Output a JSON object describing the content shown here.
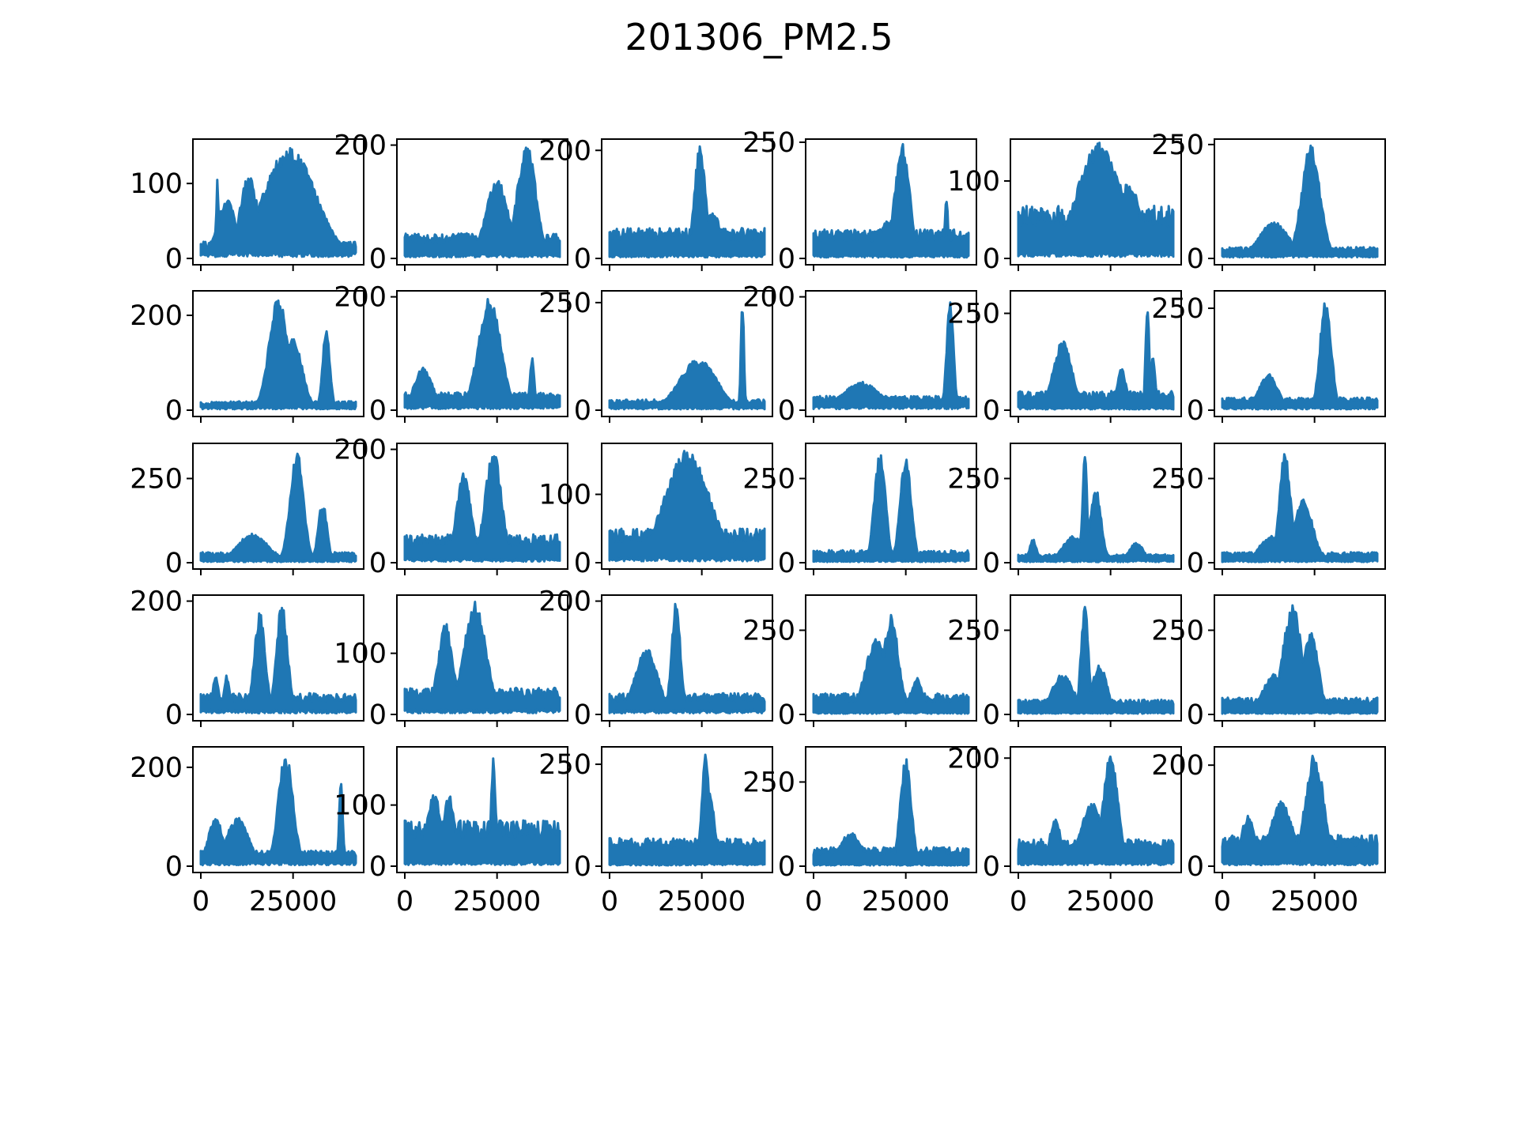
{
  "chart_data": {
    "title": "201306_PM2.5",
    "type": "area",
    "rows": 5,
    "cols": 6,
    "series_color": "#1f77b4",
    "x_range": [
      0,
      42000
    ],
    "x_ticks": [
      0,
      25000
    ],
    "x_tick_labels": [
      "0",
      "25000"
    ],
    "grid": false,
    "legend": "none",
    "panels": [
      {
        "ylim": [
          0,
          155
        ],
        "yticks": [
          0,
          100
        ],
        "ytick_labels": [
          "0",
          "100"
        ],
        "base": 18,
        "peaks": [
          [
            4500,
            110,
            300
          ],
          [
            7000,
            80,
            2500
          ],
          [
            13000,
            110,
            2500
          ],
          [
            24000,
            150,
            7000
          ]
        ]
      },
      {
        "ylim": [
          0,
          205
        ],
        "yticks": [
          0,
          200
        ],
        "ytick_labels": [
          "0",
          "200"
        ],
        "base": 35,
        "peaks": [
          [
            16000,
            45,
            6000
          ],
          [
            25000,
            140,
            3000
          ],
          [
            33000,
            205,
            2500
          ]
        ]
      },
      {
        "ylim": [
          0,
          215
        ],
        "yticks": [
          0,
          200
        ],
        "ytick_labels": [
          "0",
          "200"
        ],
        "base": 45,
        "peaks": [
          [
            16000,
            50,
            4000
          ],
          [
            24500,
            210,
            1500
          ],
          [
            28000,
            90,
            2000
          ]
        ]
      },
      {
        "ylim": [
          0,
          250
        ],
        "yticks": [
          0,
          250
        ],
        "ytick_labels": [
          "0",
          "250"
        ],
        "base": 50,
        "peaks": [
          [
            24000,
            250,
            2000
          ],
          [
            20000,
            80,
            3000
          ],
          [
            36000,
            140,
            400
          ]
        ]
      },
      {
        "ylim": [
          0,
          150
        ],
        "yticks": [
          0,
          100
        ],
        "ytick_labels": [
          "0",
          "100"
        ],
        "base": 55,
        "peaks": [
          [
            22000,
            150,
            6000
          ],
          [
            30000,
            100,
            3000
          ]
        ]
      },
      {
        "ylim": [
          0,
          255
        ],
        "yticks": [
          0,
          250
        ],
        "ytick_labels": [
          "0",
          "250"
        ],
        "base": 20,
        "peaks": [
          [
            14000,
            80,
            4000
          ],
          [
            24000,
            250,
            2500
          ]
        ]
      },
      {
        "ylim": [
          0,
          245
        ],
        "yticks": [
          0,
          200
        ],
        "ytick_labels": [
          "0",
          "200"
        ],
        "base": 15,
        "peaks": [
          [
            21000,
            240,
            2500
          ],
          [
            25000,
            150,
            2500
          ],
          [
            34000,
            170,
            1000
          ]
        ]
      },
      {
        "ylim": [
          0,
          205
        ],
        "yticks": [
          0,
          200
        ],
        "ytick_labels": [
          "0",
          "200"
        ],
        "base": 25,
        "peaks": [
          [
            5000,
            75,
            2500
          ],
          [
            23000,
            200,
            3000
          ],
          [
            34500,
            95,
            600
          ]
        ]
      },
      {
        "ylim": [
          0,
          270
        ],
        "yticks": [
          0,
          250
        ],
        "ytick_labels": [
          "0",
          "250"
        ],
        "base": 20,
        "peaks": [
          [
            24000,
            120,
            5000
          ],
          [
            36000,
            270,
            400
          ]
        ]
      },
      {
        "ylim": [
          0,
          205
        ],
        "yticks": [
          0,
          200
        ],
        "ytick_labels": [
          "0",
          "200"
        ],
        "base": 20,
        "peaks": [
          [
            13000,
            50,
            5000
          ],
          [
            37000,
            200,
            900
          ]
        ]
      },
      {
        "ylim": [
          0,
          300
        ],
        "yticks": [
          0,
          250
        ],
        "ytick_labels": [
          "0",
          "250"
        ],
        "base": 40,
        "peaks": [
          [
            12000,
            180,
            2500
          ],
          [
            28000,
            110,
            1200
          ],
          [
            35000,
            290,
            500
          ],
          [
            36500,
            150,
            600
          ]
        ]
      },
      {
        "ylim": [
          0,
          285
        ],
        "yticks": [
          0,
          250
        ],
        "ytick_labels": [
          "0",
          "250"
        ],
        "base": 25,
        "peaks": [
          [
            12500,
            90,
            2500
          ],
          [
            28000,
            280,
            1500
          ]
        ]
      },
      {
        "ylim": [
          0,
          345
        ],
        "yticks": [
          0,
          250
        ],
        "ytick_labels": [
          "0",
          "250"
        ],
        "base": 25,
        "peaks": [
          [
            14000,
            90,
            4000
          ],
          [
            26000,
            335,
            1800
          ],
          [
            33000,
            180,
            1200
          ]
        ]
      },
      {
        "ylim": [
          0,
          205
        ],
        "yticks": [
          0,
          200
        ],
        "ytick_labels": [
          "0",
          "200"
        ],
        "base": 40,
        "peaks": [
          [
            16000,
            160,
            2000
          ],
          [
            24000,
            200,
            2200
          ]
        ]
      },
      {
        "ylim": [
          0,
          170
        ],
        "yticks": [
          0,
          100
        ],
        "ytick_labels": [
          "0",
          "100"
        ],
        "base": 40,
        "peaks": [
          [
            21000,
            165,
            6000
          ]
        ]
      },
      {
        "ylim": [
          0,
          345
        ],
        "yticks": [
          0,
          250
        ],
        "ytick_labels": [
          "0",
          "250"
        ],
        "base": 30,
        "peaks": [
          [
            18000,
            330,
            1500
          ],
          [
            25000,
            320,
            1500
          ]
        ]
      },
      {
        "ylim": [
          0,
          345
        ],
        "yticks": [
          0,
          250
        ],
        "ytick_labels": [
          "0",
          "250"
        ],
        "base": 20,
        "peaks": [
          [
            4000,
            70,
            1000
          ],
          [
            15000,
            80,
            3000
          ],
          [
            18000,
            340,
            600
          ],
          [
            21000,
            220,
            1500
          ],
          [
            32000,
            60,
            2000
          ]
        ]
      },
      {
        "ylim": [
          0,
          345
        ],
        "yticks": [
          0,
          250
        ],
        "ytick_labels": [
          "0",
          "250"
        ],
        "base": 25,
        "peaks": [
          [
            13000,
            80,
            3000
          ],
          [
            17000,
            330,
            1500
          ],
          [
            22000,
            190,
            2500
          ]
        ]
      },
      {
        "ylim": [
          0,
          205
        ],
        "yticks": [
          0,
          200
        ],
        "ytick_labels": [
          "0",
          "200"
        ],
        "base": 30,
        "peaks": [
          [
            4000,
            70,
            800
          ],
          [
            7000,
            70,
            800
          ],
          [
            16000,
            180,
            1500
          ],
          [
            22000,
            200,
            1500
          ]
        ]
      },
      {
        "ylim": [
          0,
          190
        ],
        "yticks": [
          0,
          100
        ],
        "ytick_labels": [
          "0",
          "100"
        ],
        "base": 35,
        "peaks": [
          [
            11000,
            150,
            2000
          ],
          [
            19000,
            185,
            3000
          ]
        ]
      },
      {
        "ylim": [
          0,
          205
        ],
        "yticks": [
          0,
          200
        ],
        "ytick_labels": [
          "0",
          "200"
        ],
        "base": 30,
        "peaks": [
          [
            10000,
            120,
            3000
          ],
          [
            18000,
            200,
            1200
          ]
        ]
      },
      {
        "ylim": [
          0,
          345
        ],
        "yticks": [
          0,
          250
        ],
        "ytick_labels": [
          "0",
          "250"
        ],
        "base": 50,
        "peaks": [
          [
            17000,
            225,
            3000
          ],
          [
            21000,
            300,
            2000
          ],
          [
            28000,
            110,
            1500
          ]
        ]
      },
      {
        "ylim": [
          0,
          345
        ],
        "yticks": [
          0,
          250
        ],
        "ytick_labels": [
          "0",
          "250"
        ],
        "base": 35,
        "peaks": [
          [
            12000,
            120,
            3000
          ],
          [
            18000,
            330,
            1000
          ],
          [
            22000,
            150,
            2000
          ]
        ]
      },
      {
        "ylim": [
          0,
          345
        ],
        "yticks": [
          0,
          250
        ],
        "ytick_labels": [
          "0",
          "250"
        ],
        "base": 40,
        "peaks": [
          [
            14000,
            120,
            3000
          ],
          [
            19000,
            330,
            2500
          ],
          [
            24000,
            250,
            2000
          ]
        ]
      },
      {
        "ylim": [
          0,
          235
        ],
        "yticks": [
          0,
          200
        ],
        "ytick_labels": [
          "0",
          "200"
        ],
        "base": 25,
        "peaks": [
          [
            4000,
            100,
            2000
          ],
          [
            10000,
            100,
            3000
          ],
          [
            23000,
            230,
            2000
          ],
          [
            38000,
            180,
            500
          ]
        ]
      },
      {
        "ylim": [
          0,
          190
        ],
        "yticks": [
          0,
          100
        ],
        "ytick_labels": [
          "0",
          "100"
        ],
        "base": 60,
        "peaks": [
          [
            8000,
            120,
            2000
          ],
          [
            12000,
            120,
            1500
          ],
          [
            24000,
            180,
            600
          ]
        ]
      },
      {
        "ylim": [
          0,
          285
        ],
        "yticks": [
          0,
          250
        ],
        "ytick_labels": [
          "0",
          "250"
        ],
        "base": 55,
        "peaks": [
          [
            26000,
            280,
            1000
          ],
          [
            27000,
            180,
            1500
          ]
        ]
      },
      {
        "ylim": [
          0,
          345
        ],
        "yticks": [
          0,
          250
        ],
        "ytick_labels": [
          "0",
          "250"
        ],
        "base": 45,
        "peaks": [
          [
            10000,
            100,
            3000
          ],
          [
            25000,
            320,
            1500
          ]
        ]
      },
      {
        "ylim": [
          0,
          215
        ],
        "yticks": [
          0,
          200
        ],
        "ytick_labels": [
          "0",
          "200"
        ],
        "base": 40,
        "peaks": [
          [
            10000,
            90,
            1500
          ],
          [
            20000,
            120,
            3000
          ],
          [
            25000,
            210,
            2000
          ]
        ]
      },
      {
        "ylim": [
          0,
          230
        ],
        "yticks": [
          0,
          200
        ],
        "ytick_labels": [
          "0",
          "200"
        ],
        "base": 50,
        "peaks": [
          [
            7000,
            100,
            2000
          ],
          [
            16000,
            130,
            3000
          ],
          [
            25000,
            225,
            2500
          ]
        ]
      }
    ]
  }
}
